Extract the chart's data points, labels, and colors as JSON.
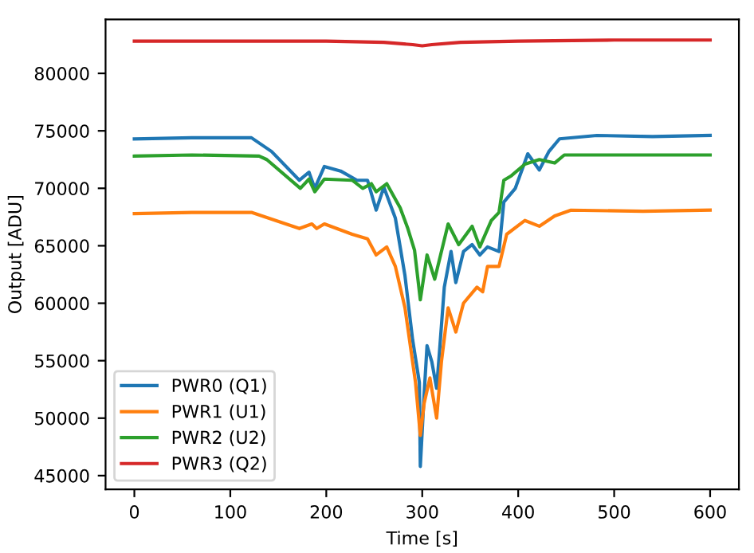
{
  "chart_data": {
    "type": "line",
    "xlabel": "Time [s]",
    "ylabel": "Output [ADU]",
    "xlim": [
      -30,
      630
    ],
    "ylim": [
      43800,
      84700
    ],
    "xticks": [
      0,
      100,
      200,
      300,
      400,
      500,
      600
    ],
    "yticks": [
      45000,
      50000,
      55000,
      60000,
      65000,
      70000,
      75000,
      80000
    ],
    "grid": false,
    "legend": "bottom left",
    "marker": "none",
    "line_style": "solid",
    "series": [
      {
        "name": "PWR0 (Q1)",
        "color": "#1f77b4",
        "x": [
          0,
          60,
          122,
          143,
          172,
          182,
          188,
          198,
          215,
          232,
          243,
          252,
          260,
          272,
          282,
          290,
          297,
          298,
          302,
          305,
          310,
          315,
          318,
          323,
          330,
          335,
          343,
          352,
          360,
          368,
          380,
          385,
          397,
          410,
          422,
          432,
          443,
          482,
          540,
          600
        ],
        "values": [
          74300,
          74400,
          74400,
          73200,
          70700,
          71400,
          70000,
          71900,
          71500,
          70700,
          70700,
          68100,
          70100,
          67400,
          62400,
          56800,
          53100,
          45800,
          52100,
          56300,
          54900,
          52600,
          55800,
          61400,
          64500,
          61800,
          64500,
          65100,
          64200,
          64900,
          64500,
          68800,
          70000,
          73000,
          71600,
          73200,
          74300,
          74600,
          74500,
          74600
        ]
      },
      {
        "name": "PWR1 (U1)",
        "color": "#ff7f0e",
        "x": [
          0,
          60,
          122,
          172,
          185,
          190,
          198,
          227,
          243,
          252,
          263,
          272,
          282,
          293,
          298,
          302,
          308,
          315,
          320,
          327,
          335,
          343,
          357,
          363,
          368,
          380,
          388,
          407,
          422,
          438,
          455,
          530,
          600
        ],
        "values": [
          67800,
          67900,
          67900,
          66500,
          66900,
          66500,
          66900,
          66000,
          65600,
          64200,
          64900,
          63200,
          59600,
          53100,
          48500,
          51300,
          53500,
          50000,
          54900,
          59600,
          57500,
          60000,
          61400,
          61000,
          63200,
          63200,
          66000,
          67200,
          66700,
          67600,
          68100,
          68000,
          68100
        ]
      },
      {
        "name": "PWR2 (U2)",
        "color": "#2ca02c",
        "x": [
          0,
          60,
          130,
          138,
          173,
          182,
          188,
          198,
          227,
          238,
          247,
          252,
          263,
          277,
          285,
          292,
          298,
          305,
          313,
          327,
          338,
          352,
          360,
          372,
          380,
          385,
          393,
          407,
          422,
          438,
          448,
          520,
          600
        ],
        "values": [
          72800,
          72900,
          72800,
          72500,
          70000,
          70800,
          69700,
          70800,
          70700,
          70000,
          70400,
          69700,
          70400,
          68300,
          66500,
          64600,
          60300,
          64200,
          62100,
          66900,
          65100,
          66700,
          64900,
          67200,
          67900,
          70700,
          71100,
          72100,
          72500,
          72200,
          72900,
          72900,
          72900
        ]
      },
      {
        "name": "PWR3 (Q2)",
        "color": "#d62728",
        "x": [
          0,
          100,
          200,
          260,
          290,
          300,
          310,
          340,
          400,
          500,
          600
        ],
        "values": [
          82800,
          82800,
          82800,
          82700,
          82500,
          82400,
          82500,
          82700,
          82800,
          82900,
          82900
        ]
      }
    ]
  }
}
